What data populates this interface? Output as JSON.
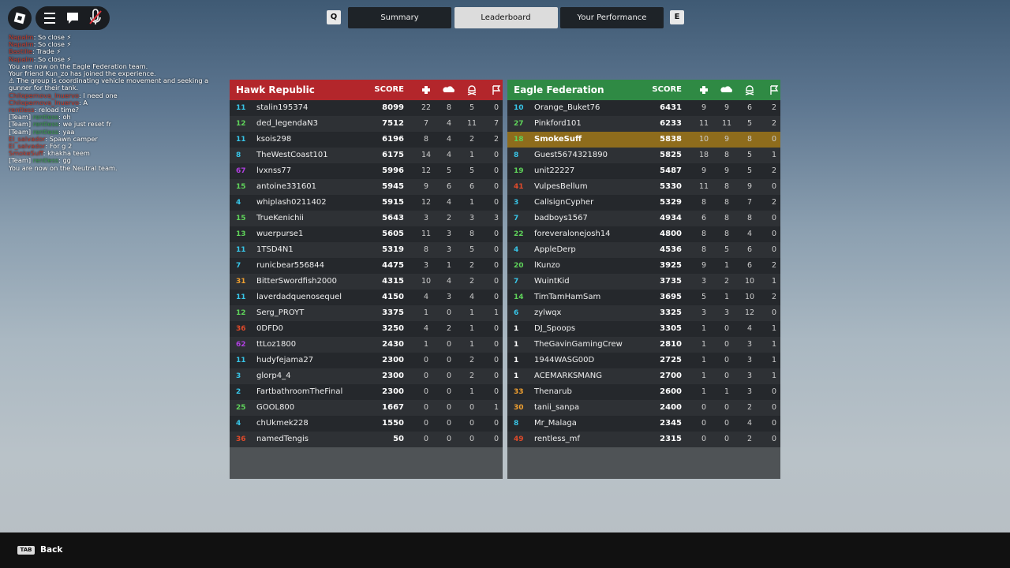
{
  "tabs": {
    "left_key": "Q",
    "right_key": "E",
    "items": [
      "Summary",
      "Leaderboard",
      "Your Performance"
    ],
    "active": 1
  },
  "chat": [
    {
      "name": "Napalm",
      "text": "So close ⚡"
    },
    {
      "name": "Napalm",
      "text": "So close ⚡"
    },
    {
      "name": "Bastille",
      "text": "Trade ⚡"
    },
    {
      "name": "Napalm",
      "text": "So close ⚡"
    },
    {
      "text": "You are now on the  Eagle Federation  team."
    },
    {
      "text": "Your friend Kun_zo has joined the experience."
    },
    {
      "text": "⚠ The group is coordinating vehicle movement and seeking a gunner for their tank."
    },
    {
      "name": "Chilopernova_lnuervo",
      "text": "I need one"
    },
    {
      "name": "Chilopernova_lnuervo",
      "text": "A"
    },
    {
      "name": "rentless",
      "text": "reload time?"
    },
    {
      "team": "[Team]",
      "name": "rentless",
      "text": "oh"
    },
    {
      "team": "[Team]",
      "name": "rentless",
      "text": "we just reset fr"
    },
    {
      "team": "[Team]",
      "name": "rentless",
      "text": "yaa"
    },
    {
      "name": "El_salvador",
      "text": "Spawn camper"
    },
    {
      "name": "El_salvador",
      "text": "For g 2"
    },
    {
      "name": "SmokeSuff",
      "text": "khakha teem"
    },
    {
      "team": "[Team]",
      "name": "rentless",
      "text": "gg"
    },
    {
      "text": "You are now on the  Neutral  team."
    }
  ],
  "score_label": "SCORE",
  "teams": [
    {
      "name": "Hawk Republic",
      "rows": [
        {
          "level": 11,
          "name": "stalin195374",
          "score": 8099,
          "stats": [
            22,
            8,
            5,
            0
          ]
        },
        {
          "level": 12,
          "name": "ded_legendaN3",
          "score": 7512,
          "stats": [
            7,
            4,
            11,
            7
          ]
        },
        {
          "level": 11,
          "name": "ksois298",
          "score": 6196,
          "stats": [
            8,
            4,
            2,
            2
          ]
        },
        {
          "level": 8,
          "name": "TheWestCoast101",
          "score": 6175,
          "stats": [
            14,
            4,
            1,
            0
          ]
        },
        {
          "level": 67,
          "name": "lvxnss77",
          "score": 5996,
          "stats": [
            12,
            5,
            5,
            0
          ]
        },
        {
          "level": 15,
          "name": "antoine331601",
          "score": 5945,
          "stats": [
            9,
            6,
            6,
            0
          ]
        },
        {
          "level": 4,
          "name": "whiplash0211402",
          "score": 5915,
          "stats": [
            12,
            4,
            1,
            0
          ]
        },
        {
          "level": 15,
          "name": "TrueKenichii",
          "score": 5643,
          "stats": [
            3,
            2,
            3,
            3
          ]
        },
        {
          "level": 13,
          "name": "wuerpurse1",
          "score": 5605,
          "stats": [
            11,
            3,
            8,
            0
          ]
        },
        {
          "level": 11,
          "name": "1TSD4N1",
          "score": 5319,
          "stats": [
            8,
            3,
            5,
            0
          ]
        },
        {
          "level": 7,
          "name": "runicbear556844",
          "score": 4475,
          "stats": [
            3,
            1,
            2,
            0
          ]
        },
        {
          "level": 31,
          "name": "BitterSwordfish2000",
          "score": 4315,
          "stats": [
            10,
            4,
            2,
            0
          ]
        },
        {
          "level": 11,
          "name": "laverdadquenosequel",
          "score": 4150,
          "stats": [
            4,
            3,
            4,
            0
          ]
        },
        {
          "level": 12,
          "name": "Serg_PROYT",
          "score": 3375,
          "stats": [
            1,
            0,
            1,
            1
          ]
        },
        {
          "level": 36,
          "name": "0DFD0",
          "score": 3250,
          "stats": [
            4,
            2,
            1,
            0
          ]
        },
        {
          "level": 62,
          "name": "ttLoz1800",
          "score": 2430,
          "stats": [
            1,
            0,
            1,
            0
          ]
        },
        {
          "level": 11,
          "name": "hudyfejama27",
          "score": 2300,
          "stats": [
            0,
            0,
            2,
            0
          ]
        },
        {
          "level": 3,
          "name": "glorp4_4",
          "score": 2300,
          "stats": [
            0,
            0,
            2,
            0
          ]
        },
        {
          "level": 2,
          "name": "FartbathroomTheFinal",
          "score": 2300,
          "stats": [
            0,
            0,
            1,
            0
          ]
        },
        {
          "level": 25,
          "name": "GOOL800",
          "score": 1667,
          "stats": [
            0,
            0,
            0,
            1
          ]
        },
        {
          "level": 4,
          "name": "chUkmek228",
          "score": 1550,
          "stats": [
            0,
            0,
            0,
            0
          ]
        },
        {
          "level": 36,
          "name": "namedTengis",
          "score": 50,
          "stats": [
            0,
            0,
            0,
            0
          ]
        }
      ]
    },
    {
      "name": "Eagle Federation",
      "rows": [
        {
          "level": 10,
          "name": "Orange_Buket76",
          "score": 6431,
          "stats": [
            9,
            9,
            6,
            2
          ]
        },
        {
          "level": 27,
          "name": "Pinkford101",
          "score": 6233,
          "stats": [
            11,
            11,
            5,
            2
          ]
        },
        {
          "level": 18,
          "name": "SmokeSuff",
          "score": 5838,
          "stats": [
            10,
            9,
            8,
            0
          ],
          "highlighted": true
        },
        {
          "level": 8,
          "name": "Guest5674321890",
          "score": 5825,
          "stats": [
            18,
            8,
            5,
            1
          ]
        },
        {
          "level": 19,
          "name": "unit22227",
          "score": 5487,
          "stats": [
            9,
            9,
            5,
            2
          ]
        },
        {
          "level": 41,
          "name": "VulpesBellum",
          "score": 5330,
          "stats": [
            11,
            8,
            9,
            0
          ]
        },
        {
          "level": 3,
          "name": "CallsignCypher",
          "score": 5329,
          "stats": [
            8,
            8,
            7,
            2
          ]
        },
        {
          "level": 7,
          "name": "badboys1567",
          "score": 4934,
          "stats": [
            6,
            8,
            8,
            0
          ]
        },
        {
          "level": 22,
          "name": "foreveralonejosh14",
          "score": 4800,
          "stats": [
            8,
            8,
            4,
            0
          ]
        },
        {
          "level": 4,
          "name": "AppleDerp",
          "score": 4536,
          "stats": [
            8,
            5,
            6,
            0
          ]
        },
        {
          "level": 20,
          "name": "lKunzo",
          "score": 3925,
          "stats": [
            9,
            1,
            6,
            2
          ]
        },
        {
          "level": 7,
          "name": "WuintKid",
          "score": 3735,
          "stats": [
            3,
            2,
            10,
            1
          ]
        },
        {
          "level": 14,
          "name": "TimTamHamSam",
          "score": 3695,
          "stats": [
            5,
            1,
            10,
            2
          ]
        },
        {
          "level": 6,
          "name": "zylwqx",
          "score": 3325,
          "stats": [
            3,
            3,
            12,
            0
          ]
        },
        {
          "level": 1,
          "name": "DJ_Spoops",
          "score": 3305,
          "stats": [
            1,
            0,
            4,
            1
          ]
        },
        {
          "level": 1,
          "name": "TheGavinGamingCrew",
          "score": 2810,
          "stats": [
            1,
            0,
            3,
            1
          ]
        },
        {
          "level": 1,
          "name": "1944WASG00D",
          "score": 2725,
          "stats": [
            1,
            0,
            3,
            1
          ]
        },
        {
          "level": 1,
          "name": "ACEMARKSMANG",
          "score": 2700,
          "stats": [
            1,
            0,
            3,
            1
          ]
        },
        {
          "level": 33,
          "name": "Thenarub",
          "score": 2600,
          "stats": [
            1,
            1,
            3,
            0
          ]
        },
        {
          "level": 30,
          "name": "tanii_sanpa",
          "score": 2400,
          "stats": [
            0,
            0,
            2,
            0
          ]
        },
        {
          "level": 8,
          "name": "Mr_Malaga",
          "score": 2345,
          "stats": [
            0,
            0,
            4,
            0
          ]
        },
        {
          "level": 49,
          "name": "rentless_mf",
          "score": 2315,
          "stats": [
            0,
            0,
            2,
            0
          ]
        }
      ]
    }
  ],
  "footer": {
    "key": "TAB",
    "label": "Back"
  }
}
